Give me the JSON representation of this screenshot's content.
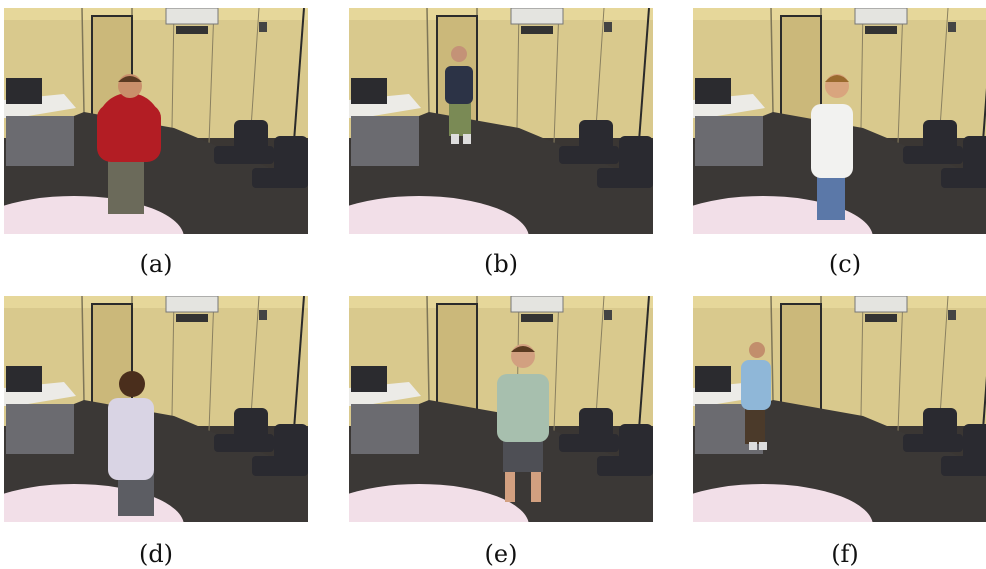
{
  "figure": {
    "panels": [
      {
        "id": "a",
        "caption": "(a)",
        "person": {
          "shirt": "#b31d24",
          "pants": "#6b6a5a",
          "skin": "#c98f6b",
          "hair": "#5a3a22"
        }
      },
      {
        "id": "b",
        "caption": "(b)",
        "person": {
          "shirt": "#2c3346",
          "pants": "#7a8a55",
          "skin": "#c49277",
          "hair": "#3a2b20"
        }
      },
      {
        "id": "c",
        "caption": "(c)",
        "person": {
          "shirt": "#f2f2f0",
          "pants": "#5b78a8",
          "skin": "#d9a57e",
          "hair": "#9a6a2e"
        }
      },
      {
        "id": "d",
        "caption": "(d)",
        "person": {
          "shirt": "#d9d4e4",
          "pants": "#5c5d63",
          "skin": "#c99678",
          "hair": "#4a2e1c"
        }
      },
      {
        "id": "e",
        "caption": "(e)",
        "person": {
          "shirt": "#a7bfae",
          "pants": "#4e4f55",
          "skin": "#d2a080",
          "hair": "#5b3b21"
        }
      },
      {
        "id": "f",
        "caption": "(f)",
        "person": {
          "shirt": "#8fb7d8",
          "pants": "#4b3a2a",
          "skin": "#c28e6c",
          "hair": "#2b2119"
        }
      }
    ]
  }
}
